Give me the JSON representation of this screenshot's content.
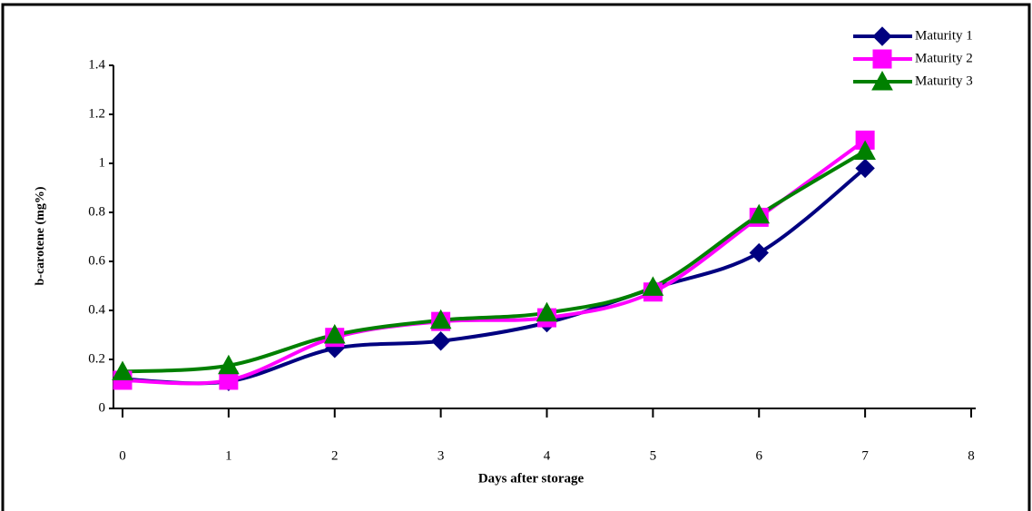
{
  "chart_data": {
    "type": "line",
    "x": [
      0,
      1,
      2,
      3,
      4,
      5,
      6,
      7
    ],
    "series": [
      {
        "name": "Maturity 1",
        "color": "#000080",
        "marker": "diamond",
        "values": [
          0.12,
          0.11,
          0.245,
          0.275,
          0.35,
          0.49,
          0.635,
          0.98
        ]
      },
      {
        "name": "Maturity 2",
        "color": "#ff00ff",
        "marker": "square",
        "values": [
          0.115,
          0.115,
          0.29,
          0.355,
          0.37,
          0.475,
          0.78,
          1.095
        ]
      },
      {
        "name": "Maturity 3",
        "color": "#008000",
        "marker": "triangle",
        "values": [
          0.15,
          0.175,
          0.3,
          0.36,
          0.39,
          0.495,
          0.79,
          1.05
        ]
      }
    ],
    "xlabel": "Days after storage",
    "ylabel": "b-carotene  (mg%)",
    "xlim": [
      0,
      8
    ],
    "xticks": [
      0,
      1,
      2,
      3,
      4,
      5,
      6,
      7,
      8
    ],
    "ylim": [
      0,
      1.4
    ],
    "yticks": [
      0,
      0.2,
      0.4,
      0.6,
      0.8,
      1,
      1.2,
      1.4
    ],
    "smooth": true,
    "legend": "top-right"
  }
}
